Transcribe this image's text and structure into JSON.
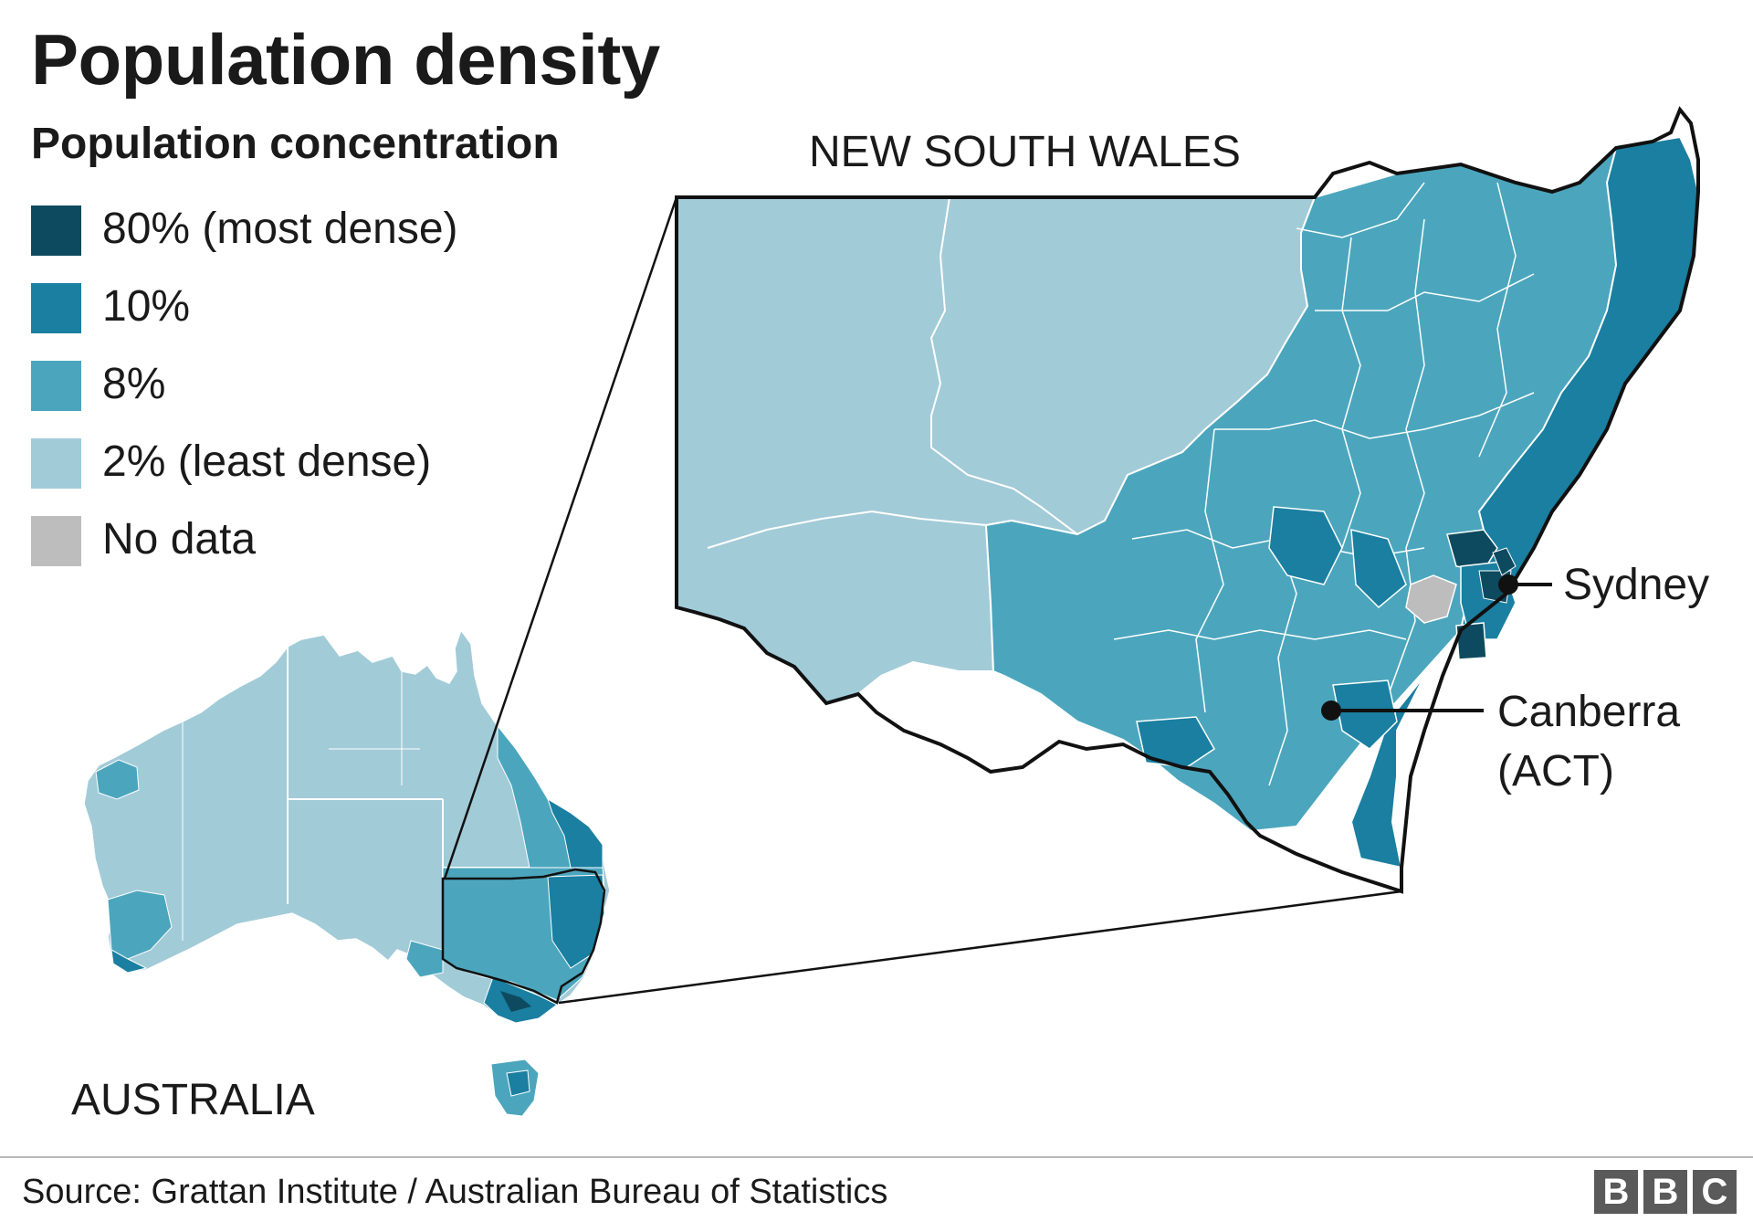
{
  "title": "Population density",
  "subtitle": "Population concentration",
  "legend": [
    {
      "label": "80% (most dense)",
      "color": "#0e4a5f"
    },
    {
      "label": "10%",
      "color": "#1a7fa0"
    },
    {
      "label": "8%",
      "color": "#4ba6bd"
    },
    {
      "label": "2% (least dense)",
      "color": "#a2cbd8"
    },
    {
      "label": "No data",
      "color": "#bdbdbd"
    }
  ],
  "map": {
    "nsw_label": "NEW SOUTH WALES",
    "australia_label": "AUSTRALIA",
    "cities": {
      "sydney": "Sydney",
      "canberra_line1": "Canberra",
      "canberra_line2": "(ACT)"
    }
  },
  "source": "Source: Grattan Institute / Australian Bureau of Statistics",
  "logo": {
    "letters": [
      "B",
      "B",
      "C"
    ]
  }
}
